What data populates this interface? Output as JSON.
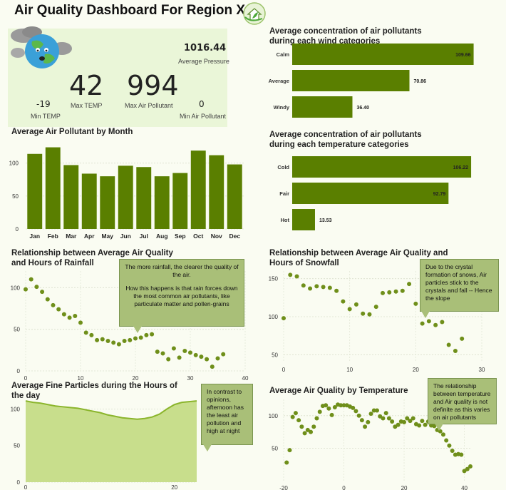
{
  "header": {
    "title": "Air Quality Dashboard For Region X",
    "logo_icon": "house-with-leaf-icon",
    "mascot_icon": "earth-with-smog-icon"
  },
  "kpis": {
    "avg_pressure_value": "1016.44",
    "avg_pressure_label": "Average Pressure",
    "max_temp_value": "42",
    "max_temp_label": "Max TEMP",
    "max_pollutant_value": "994",
    "max_pollutant_label": "Max Air Pollutant",
    "min_temp_value": "-19",
    "min_temp_label": "Min TEMP",
    "min_pollutant_value": "0",
    "min_pollutant_label": "Min Air Pollutant"
  },
  "colors": {
    "bar": "#5a7f00",
    "dot": "#6f8f1a",
    "area_fill": "#c8de8c",
    "area_line": "#8bb52c",
    "note_bg": "#a9bf78"
  },
  "notes": {
    "rainfall": [
      "The more rainfall, the clearer the quality of the air.",
      "How this happens is that rain forces down the most common air pollutants, like particulate matter and pollen-grains"
    ],
    "snowfall": "Due to the crystal formation of snows, Air particles stick to the crystals and fall -- Hence the slope",
    "fine_particles": "In contrast to opinions, afternoon has the least air pollution and high at night",
    "temperature": "The relationship between temperature and Air quality is not definite as this varies on air pollutants"
  },
  "chart_data": [
    {
      "id": "monthly",
      "type": "bar",
      "title": "Average Air Pollutant by Month",
      "categories": [
        "Jan",
        "Feb",
        "Mar",
        "Apr",
        "May",
        "Jun",
        "Jul",
        "Aug",
        "Sep",
        "Oct",
        "Nov",
        "Dec"
      ],
      "values": [
        114,
        124,
        97,
        84,
        80,
        96,
        94,
        80,
        85,
        119,
        112,
        98
      ],
      "ylim": [
        0,
        130
      ],
      "yticks": [
        0,
        50,
        100
      ]
    },
    {
      "id": "wind",
      "type": "bar",
      "orientation": "horizontal",
      "title": [
        "Average concentration of air pollutants",
        "during each wind categories"
      ],
      "categories": [
        "Calm",
        "Average",
        "Windy"
      ],
      "values": [
        109.66,
        70.86,
        36.4
      ],
      "value_labels": [
        "109.66",
        "70.86",
        "36.40"
      ],
      "xlim": [
        0,
        112
      ]
    },
    {
      "id": "temp_cat",
      "type": "bar",
      "orientation": "horizontal",
      "title": [
        "Average concentration of air pollutants",
        "during each temperature categories"
      ],
      "categories": [
        "Cold",
        "Fair",
        "Hot"
      ],
      "values": [
        106.22,
        92.79,
        13.53
      ],
      "value_labels": [
        "106.22",
        "92.79",
        "13.53"
      ],
      "xlim": [
        0,
        110
      ]
    },
    {
      "id": "rainfall",
      "type": "scatter",
      "title": [
        "Relationship between Average Air Quality",
        "and Hours of Rainfall"
      ],
      "x": [
        0,
        1,
        2,
        3,
        4,
        5,
        6,
        7,
        8,
        9,
        10,
        11,
        12,
        13,
        14,
        15,
        16,
        17,
        18,
        19,
        20,
        21,
        22,
        23,
        24,
        25,
        26,
        27,
        28,
        29,
        30,
        31,
        32,
        33,
        34,
        35,
        36
      ],
      "y": [
        98,
        110,
        101,
        95,
        86,
        79,
        74,
        68,
        64,
        66,
        58,
        46,
        43,
        37,
        38,
        36,
        34,
        32,
        36,
        37,
        39,
        40,
        43,
        44,
        23,
        21,
        14,
        27,
        16,
        24,
        22,
        19,
        17,
        14,
        5,
        15,
        20
      ],
      "xlim": [
        0,
        40
      ],
      "ylim": [
        0,
        120
      ],
      "xticks": [
        0,
        10,
        20,
        30,
        40
      ],
      "yticks": [
        0,
        50,
        100
      ]
    },
    {
      "id": "snowfall",
      "type": "scatter",
      "title": [
        "Relationship between Average Air Quality and",
        "Hours of Snowfall"
      ],
      "x": [
        0,
        1,
        2,
        3,
        4,
        5,
        6,
        7,
        8,
        9,
        10,
        11,
        12,
        13,
        14,
        15,
        16,
        17,
        18,
        19,
        20,
        21,
        22,
        23,
        24,
        25,
        26,
        27
      ],
      "y": [
        98,
        155,
        153,
        141,
        137,
        140,
        139,
        138,
        134,
        120,
        110,
        116,
        104,
        103,
        113,
        131,
        132,
        133,
        134,
        143,
        117,
        91,
        94,
        89,
        93,
        63,
        55,
        71
      ],
      "xlim": [
        0,
        30
      ],
      "ylim": [
        40,
        160
      ],
      "xticks": [
        0,
        10,
        20,
        30
      ],
      "yticks": [
        50,
        100,
        150
      ]
    },
    {
      "id": "fine_particles",
      "type": "area",
      "title": [
        "Average Fine Particles during the Hours of",
        "the day"
      ],
      "x": [
        0,
        1,
        2,
        3,
        4,
        5,
        6,
        7,
        8,
        9,
        10,
        11,
        12,
        13,
        14,
        15,
        16,
        17,
        18,
        19,
        20,
        21,
        22,
        23
      ],
      "y": [
        111,
        109,
        108,
        106,
        104,
        103,
        102,
        101,
        99,
        97,
        95,
        92,
        90,
        88,
        87,
        86,
        87,
        89,
        93,
        100,
        106,
        109,
        110,
        111
      ],
      "xlim": [
        0,
        23
      ],
      "ylim": [
        0,
        115
      ],
      "xticks": [
        0,
        20
      ],
      "yticks": [
        0,
        50,
        100
      ]
    },
    {
      "id": "temperature",
      "type": "scatter",
      "title": "Average Air Quality by Temperature",
      "x": [
        -19,
        -18,
        -17,
        -16,
        -15,
        -14,
        -13,
        -12,
        -11,
        -10,
        -9,
        -8,
        -7,
        -6,
        -5,
        -4,
        -3,
        -2,
        -1,
        0,
        1,
        2,
        3,
        4,
        5,
        6,
        7,
        8,
        9,
        10,
        11,
        12,
        13,
        14,
        15,
        16,
        17,
        18,
        19,
        20,
        21,
        22,
        23,
        24,
        25,
        26,
        27,
        28,
        29,
        30,
        31,
        32,
        33,
        34,
        35,
        36,
        37,
        38,
        39,
        40,
        41,
        42
      ],
      "y": [
        28,
        47,
        98,
        104,
        93,
        83,
        73,
        78,
        75,
        83,
        96,
        106,
        115,
        116,
        111,
        101,
        113,
        117,
        116,
        116,
        116,
        114,
        112,
        107,
        100,
        93,
        83,
        90,
        103,
        108,
        108,
        99,
        96,
        104,
        96,
        91,
        83,
        86,
        91,
        90,
        96,
        92,
        96,
        87,
        85,
        92,
        86,
        91,
        85,
        84,
        78,
        76,
        71,
        62,
        54,
        46,
        40,
        41,
        40,
        15,
        18,
        22
      ],
      "xlim": [
        -20,
        42
      ],
      "ylim": [
        0,
        125
      ],
      "xticks": [
        -20,
        0,
        20,
        40
      ],
      "yticks": [
        50,
        100
      ]
    }
  ]
}
